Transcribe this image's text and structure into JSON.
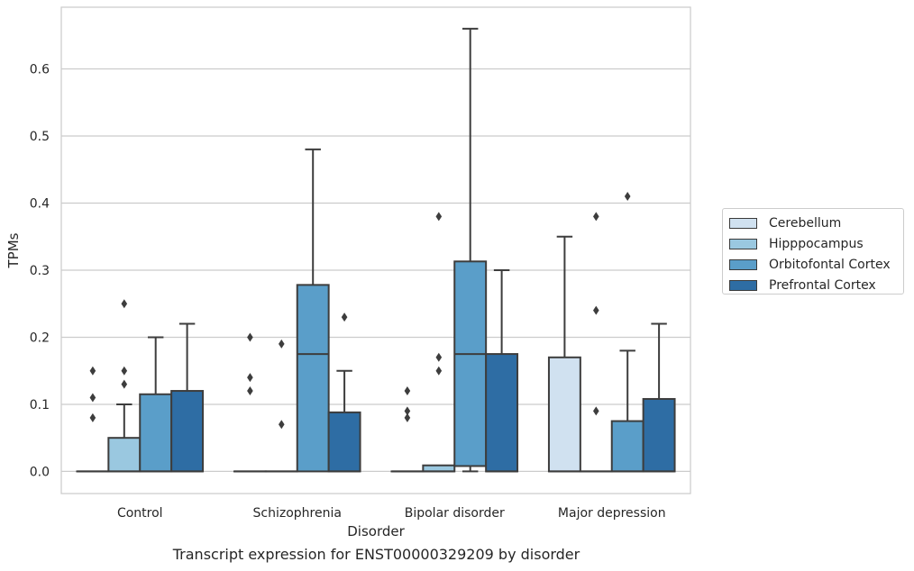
{
  "chart_data": {
    "type": "boxplot",
    "caption": "Transcript expression for ENST00000329209 by disorder",
    "xlabel": "Disorder",
    "ylabel": "TPMs",
    "ylim": [
      -0.033,
      0.692
    ],
    "yticks": [
      0.0,
      0.1,
      0.2,
      0.3,
      0.4,
      0.5,
      0.6
    ],
    "ytick_labels": [
      "0.0",
      "0.1",
      "0.2",
      "0.3",
      "0.4",
      "0.5",
      "0.6"
    ],
    "grid": "horizontal",
    "legend_position": "right",
    "categories": [
      "Control",
      "Schizophrenia",
      "Bipolar disorder",
      "Major depression"
    ],
    "series": [
      {
        "name": "Cerebellum",
        "color": "#d0e1f0",
        "boxes": [
          {
            "q1": 0,
            "median": 0,
            "q3": 0,
            "whisker_low": 0,
            "whisker_high": 0,
            "outliers": [
              0.08,
              0.11,
              0.15
            ]
          },
          {
            "q1": 0,
            "median": 0,
            "q3": 0,
            "whisker_low": 0,
            "whisker_high": 0,
            "outliers": [
              0.12,
              0.14,
              0.2
            ]
          },
          {
            "q1": 0,
            "median": 0,
            "q3": 0,
            "whisker_low": 0,
            "whisker_high": 0,
            "outliers": [
              0.08,
              0.09,
              0.12
            ]
          },
          {
            "q1": 0,
            "median": 0,
            "q3": 0.17,
            "whisker_low": 0,
            "whisker_high": 0.35,
            "outliers": []
          }
        ]
      },
      {
        "name": "Hipppocampus",
        "color": "#9ac8e0",
        "boxes": [
          {
            "q1": 0,
            "median": 0,
            "q3": 0.05,
            "whisker_low": 0,
            "whisker_high": 0.1,
            "outliers": [
              0.13,
              0.15,
              0.25
            ]
          },
          {
            "q1": 0,
            "median": 0,
            "q3": 0,
            "whisker_low": 0,
            "whisker_high": 0,
            "outliers": [
              0.07,
              0.19
            ]
          },
          {
            "q1": 0,
            "median": 0,
            "q3": 0.009,
            "whisker_low": 0,
            "whisker_high": 0.009,
            "outliers": [
              0.15,
              0.17,
              0.38
            ]
          },
          {
            "q1": 0,
            "median": 0,
            "q3": 0,
            "whisker_low": 0,
            "whisker_high": 0,
            "outliers": [
              0.09,
              0.24,
              0.38
            ]
          }
        ]
      },
      {
        "name": "Orbitofontal Cortex",
        "color": "#5a9ec9",
        "boxes": [
          {
            "q1": 0,
            "median": 0,
            "q3": 0.115,
            "whisker_low": 0,
            "whisker_high": 0.2,
            "outliers": []
          },
          {
            "q1": 0,
            "median": 0.175,
            "q3": 0.278,
            "whisker_low": 0,
            "whisker_high": 0.48,
            "outliers": []
          },
          {
            "q1": 0.008,
            "median": 0.175,
            "q3": 0.313,
            "whisker_low": 0,
            "whisker_high": 0.66,
            "outliers": []
          },
          {
            "q1": 0,
            "median": 0,
            "q3": 0.075,
            "whisker_low": 0,
            "whisker_high": 0.18,
            "outliers": [
              0.41
            ]
          }
        ]
      },
      {
        "name": "Prefrontal Cortex",
        "color": "#2e6da4",
        "boxes": [
          {
            "q1": 0,
            "median": 0,
            "q3": 0.12,
            "whisker_low": 0,
            "whisker_high": 0.22,
            "outliers": []
          },
          {
            "q1": 0,
            "median": 0,
            "q3": 0.088,
            "whisker_low": 0,
            "whisker_high": 0.15,
            "outliers": [
              0.23
            ]
          },
          {
            "q1": 0,
            "median": 0,
            "q3": 0.175,
            "whisker_low": 0,
            "whisker_high": 0.3,
            "outliers": []
          },
          {
            "q1": 0,
            "median": 0,
            "q3": 0.108,
            "whisker_low": 0,
            "whisker_high": 0.22,
            "outliers": []
          }
        ]
      }
    ]
  }
}
